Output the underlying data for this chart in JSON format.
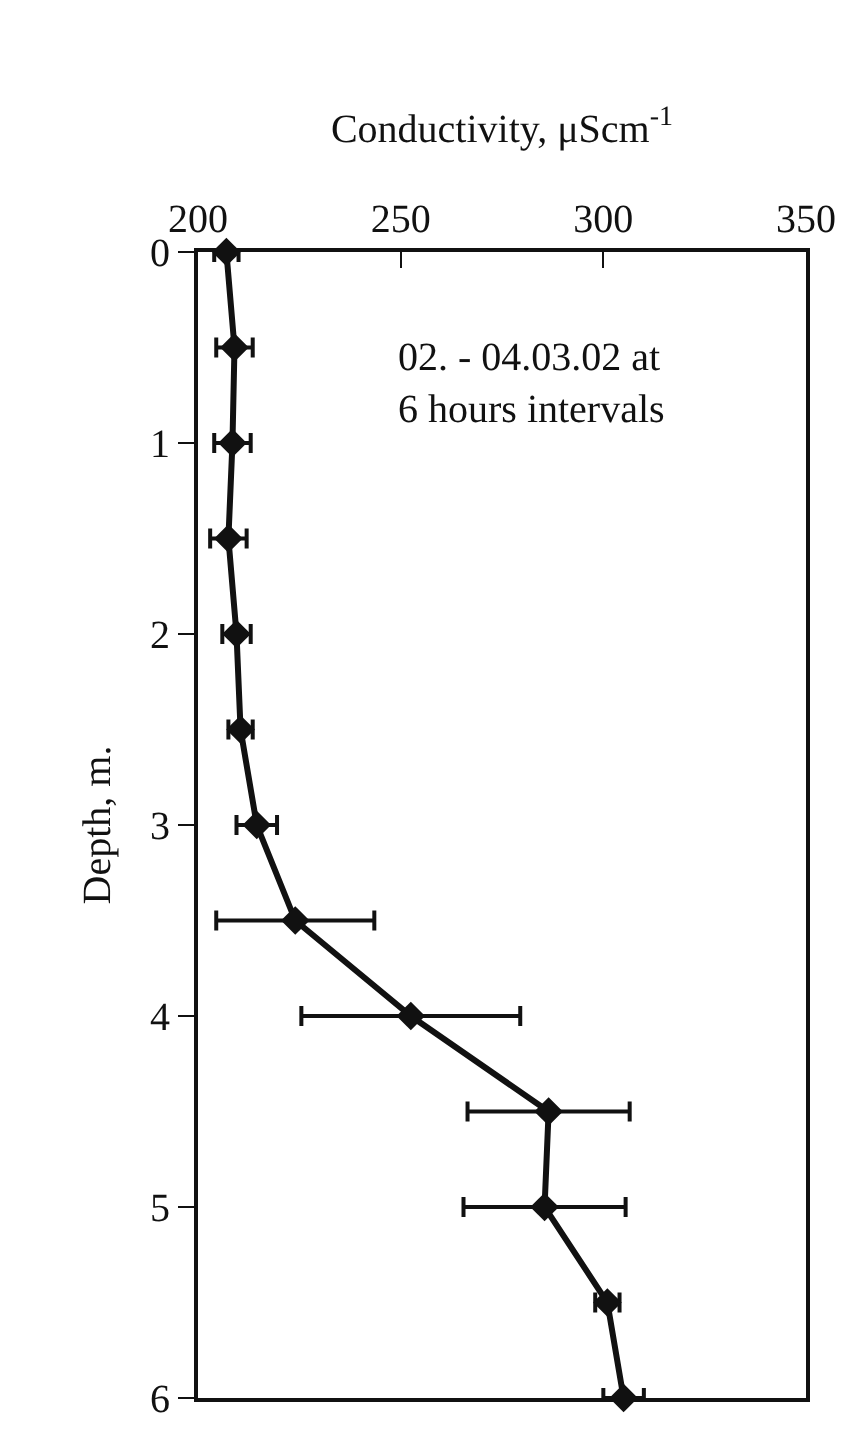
{
  "chart_data": {
    "type": "line",
    "xlabel": "Conductivity, μScm$^{-1}$",
    "ylabel": "Depth, m.",
    "annotations": [
      "02. - 04.03.02 at\n6 hours intervals"
    ],
    "series": [
      {
        "color": "#111111",
        "x": [
          207,
          209,
          208.5,
          207.5,
          209.5,
          210.5,
          214.5,
          224,
          252.5,
          286.5,
          285.5,
          301,
          305
        ],
        "values": [
          0,
          0.5,
          1,
          1.5,
          2,
          2.5,
          3,
          3.5,
          4,
          4.5,
          5,
          5.5,
          6
        ],
        "xerrors": [
          3,
          4.5,
          4.5,
          4.5,
          3.5,
          3,
          5,
          19.5,
          27,
          20,
          20,
          3,
          5
        ]
      }
    ],
    "xlim": [
      200,
      350
    ],
    "xticks": [
      200,
      250,
      300,
      350
    ],
    "ylim": [
      6,
      0
    ],
    "yticks": [
      0,
      1,
      2,
      3,
      4,
      5,
      6
    ],
    "grid": false,
    "marker": "diamond",
    "line_style": "solid"
  }
}
